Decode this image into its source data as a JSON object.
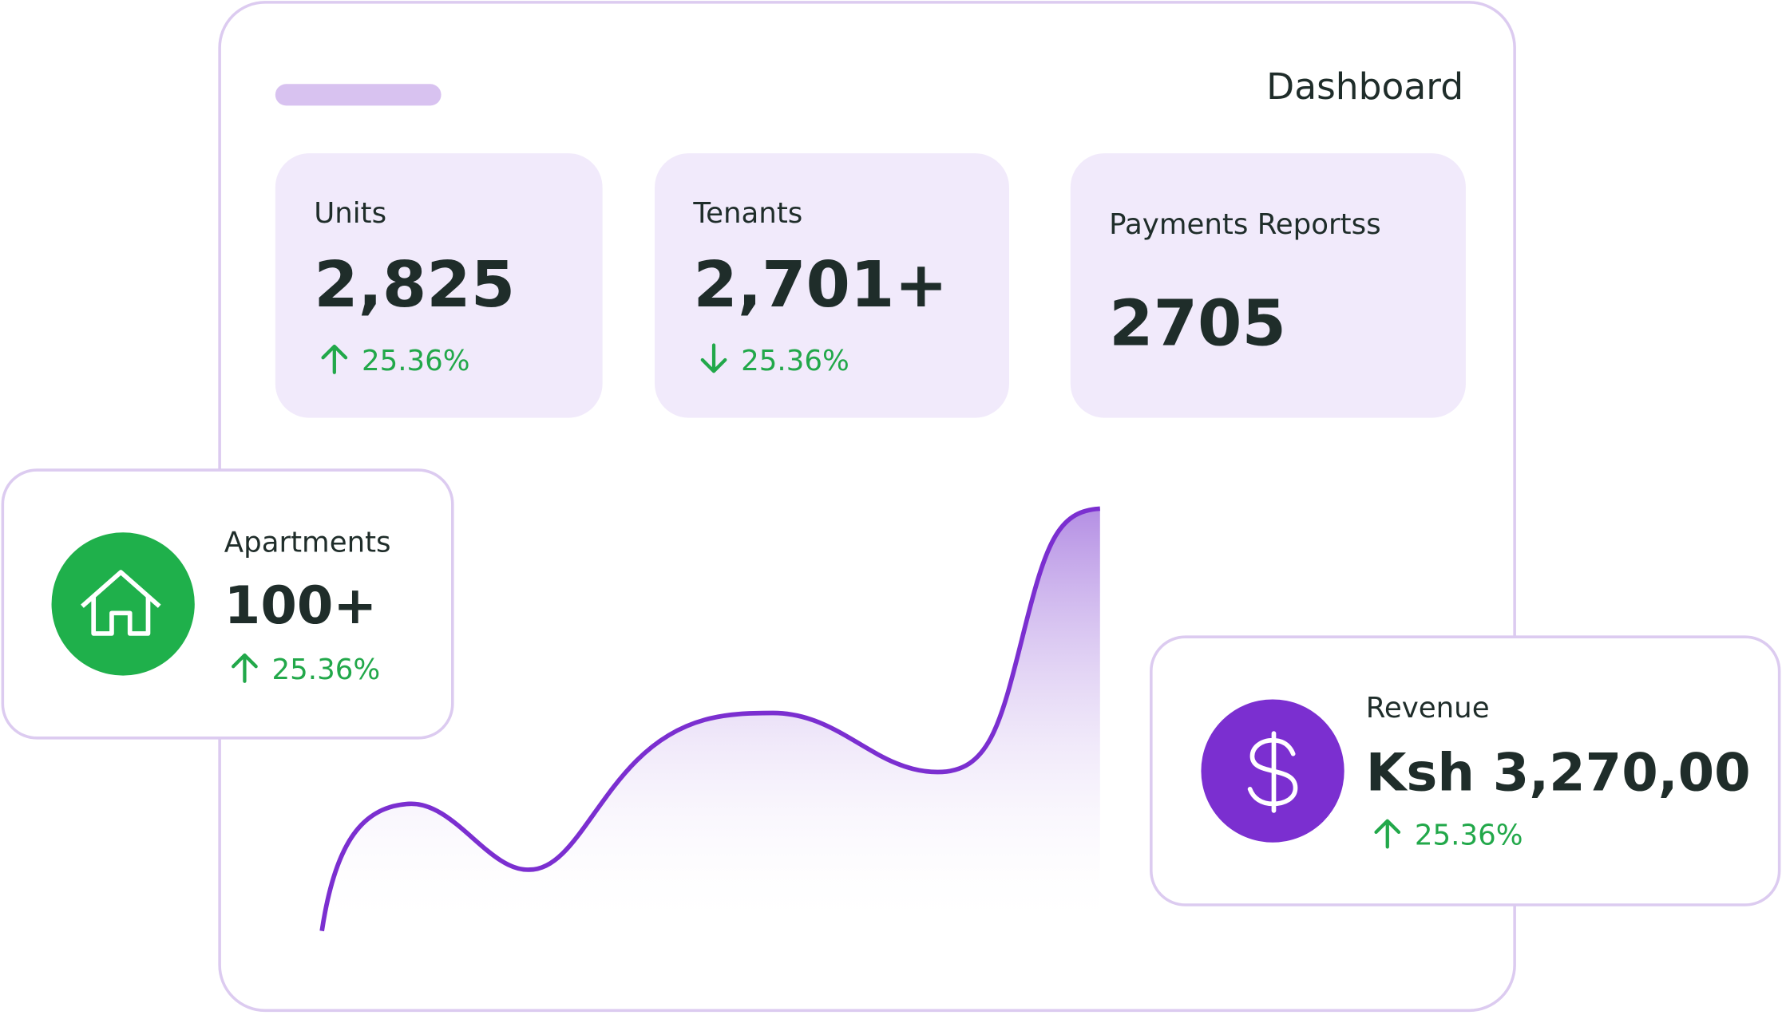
{
  "header": {
    "title": "Dashboard"
  },
  "stats": [
    {
      "label": "Units",
      "value": "2,825",
      "change": "25.36%"
    },
    {
      "label": "Tenants",
      "value": "2,701+",
      "change": "25.36%"
    },
    {
      "label": "Payments Reportss",
      "value": "2705"
    }
  ],
  "apartments": {
    "label": "Apartments",
    "value": "100+",
    "change": "25.36%"
  },
  "revenue": {
    "label": "Revenue",
    "value": "Ksh 3,270,00",
    "change": "25.36%"
  }
}
